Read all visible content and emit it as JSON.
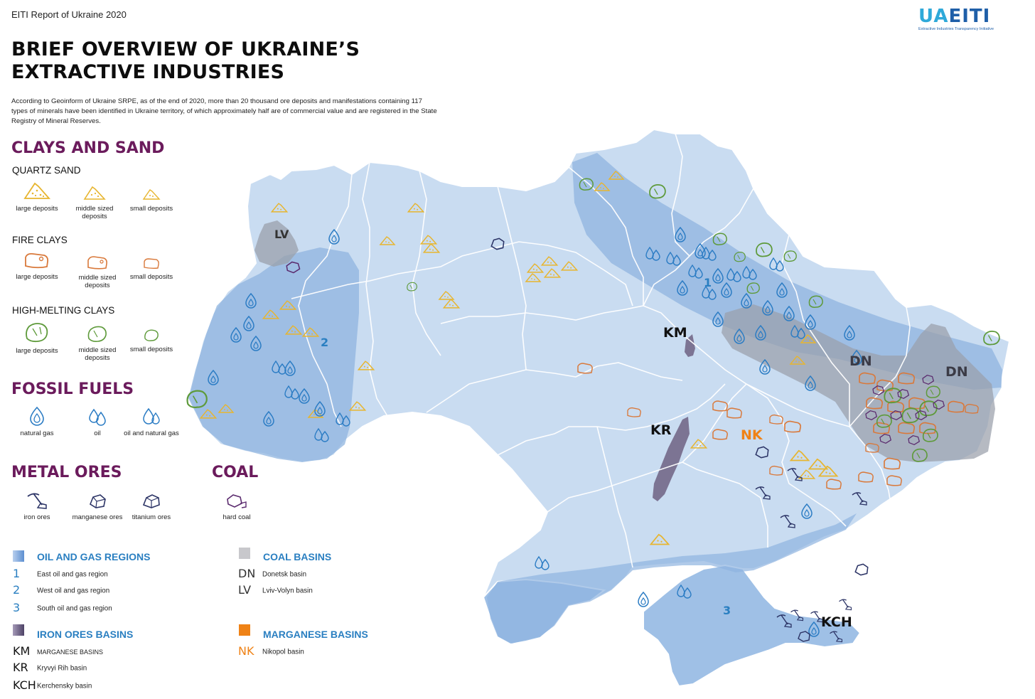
{
  "header": {
    "report_title": "EITI Report of Ukraine 2020",
    "logo_main_ua": "UA",
    "logo_main_eiti": "EITI",
    "logo_sub": "Extractive Industries Transparency Initiative",
    "title_line1": "BRIEF OVERVIEW OF UKRAINE’S",
    "title_line2": "EXTRACTIVE INDUSTRIES",
    "intro": "According to Geoinform of Ukraine SRPE, as of the end of 2020, more than 20 thousand ore deposits and manifestations containing 117 types of minerals have been identified in Ukraine territory, of which approximately half are of commercial value and are registered in the State Registry of Mineral Reserves."
  },
  "legend": {
    "clays_sand": {
      "heading": "CLAYS AND SAND",
      "quartz": {
        "title": "QUARTZ SAND",
        "large": "large deposits",
        "middle": "middle sized deposits",
        "small": "small deposits"
      },
      "fire": {
        "title": "FIRE CLAYS",
        "large": "large deposits",
        "middle": "middle sized deposits",
        "small": "small deposits"
      },
      "high": {
        "title": "HIGH-MELTING CLAYS",
        "large": "large deposits",
        "middle": "middle sized deposits",
        "small": "small deposits"
      }
    },
    "fossil": {
      "heading": "FOSSIL FUELS",
      "gas": "natural gas",
      "oil": "oil",
      "oilgas": "oil and natural gas"
    },
    "metal": {
      "heading": "METAL ORES",
      "iron": "iron ores",
      "manganese": "manganese ores",
      "titanium": "titanium ores"
    },
    "coal": {
      "heading": "COAL",
      "hard": "hard coal"
    }
  },
  "keys": {
    "oilgas": {
      "title": "OIL AND GAS REGIONS",
      "rows": [
        {
          "code": "1",
          "desc": "East oil and gas region"
        },
        {
          "code": "2",
          "desc": "West oil and gas region"
        },
        {
          "code": "3",
          "desc": "South oil and gas region"
        }
      ]
    },
    "coal": {
      "title": "COAL BASINS",
      "rows": [
        {
          "code": "DN",
          "desc": "Donetsk basin"
        },
        {
          "code": "LV",
          "desc": "Lviv-Volyn basin"
        }
      ]
    },
    "iron": {
      "title": "IRON ORES BASINS",
      "rows": [
        {
          "code": "KM",
          "desc": "MARGANESE BASINS"
        },
        {
          "code": "KR",
          "desc": "Kryvyi Rih basin"
        },
        {
          "code": "KCH",
          "desc": "Kerchensky basin"
        }
      ]
    },
    "manganese": {
      "title": "MARGANESE BASINS",
      "rows": [
        {
          "code": "NK",
          "desc": "Nikopol basin"
        }
      ]
    }
  },
  "map_labels": {
    "lv": "LV",
    "km": "KM",
    "kr": "KR",
    "nk": "NK",
    "dn1": "DN",
    "dn2": "DN",
    "kch": "KCH",
    "r1": "1",
    "r2": "2",
    "r3": "3"
  },
  "colors": {
    "country": "#c9dcf1",
    "oil_gas_region": "#8fb4df",
    "coal_basin": "#9aa0ab",
    "iron_basin": "#6e6283",
    "manganese": "#ef8216",
    "heading_purple": "#6b1b5c",
    "key_blue": "#2a7fc1",
    "quartz": "#e7b52f",
    "fire_clay": "#d9793b",
    "high_clay": "#5e9a3a",
    "fuel_blue": "#2b7cc4",
    "ore_navy": "#2c3466"
  }
}
